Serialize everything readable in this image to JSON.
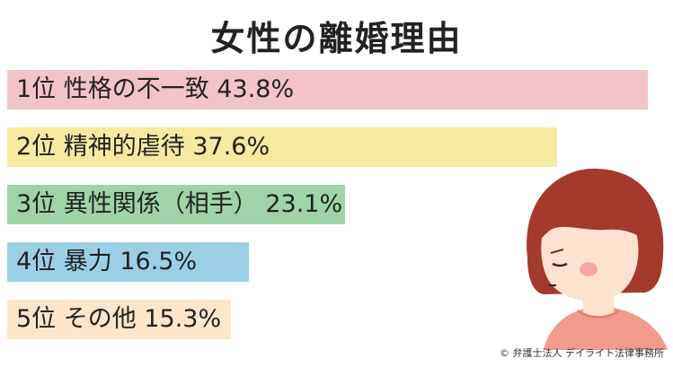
{
  "title": "女性の離婚理由",
  "credit": "© 弁護士法人 デイライト法律事務所",
  "chart_data": {
    "type": "bar",
    "orientation": "horizontal",
    "title": "女性の離婚理由",
    "xlim": [
      0,
      45
    ],
    "items": [
      {
        "rank": "1位",
        "category": "性格の不一致",
        "value": 43.8,
        "display": "1位 性格の不一致 43.8%",
        "color": "#f2c3c9"
      },
      {
        "rank": "2位",
        "category": "精神的虐待",
        "value": 37.6,
        "display": "2位 精神的虐待 37.6%",
        "color": "#f6eaa1"
      },
      {
        "rank": "3位",
        "category": "異性関係（相手）",
        "value": 23.1,
        "display": "3位 異性関係（相手） 23.1%",
        "color": "#9fd4a8"
      },
      {
        "rank": "4位",
        "category": "暴力",
        "value": 16.5,
        "display": "4位 暴力 16.5%",
        "color": "#9bcfe6"
      },
      {
        "rank": "5位",
        "category": "その他",
        "value": 15.3,
        "display": "5位 その他 15.3%",
        "color": "#fbe6cb"
      }
    ]
  },
  "illustration": {
    "icon": "worried-woman-icon",
    "hair_color": "#a33a2c",
    "skin_color": "#fde3cf",
    "shirt_color": "#f29a8c"
  }
}
